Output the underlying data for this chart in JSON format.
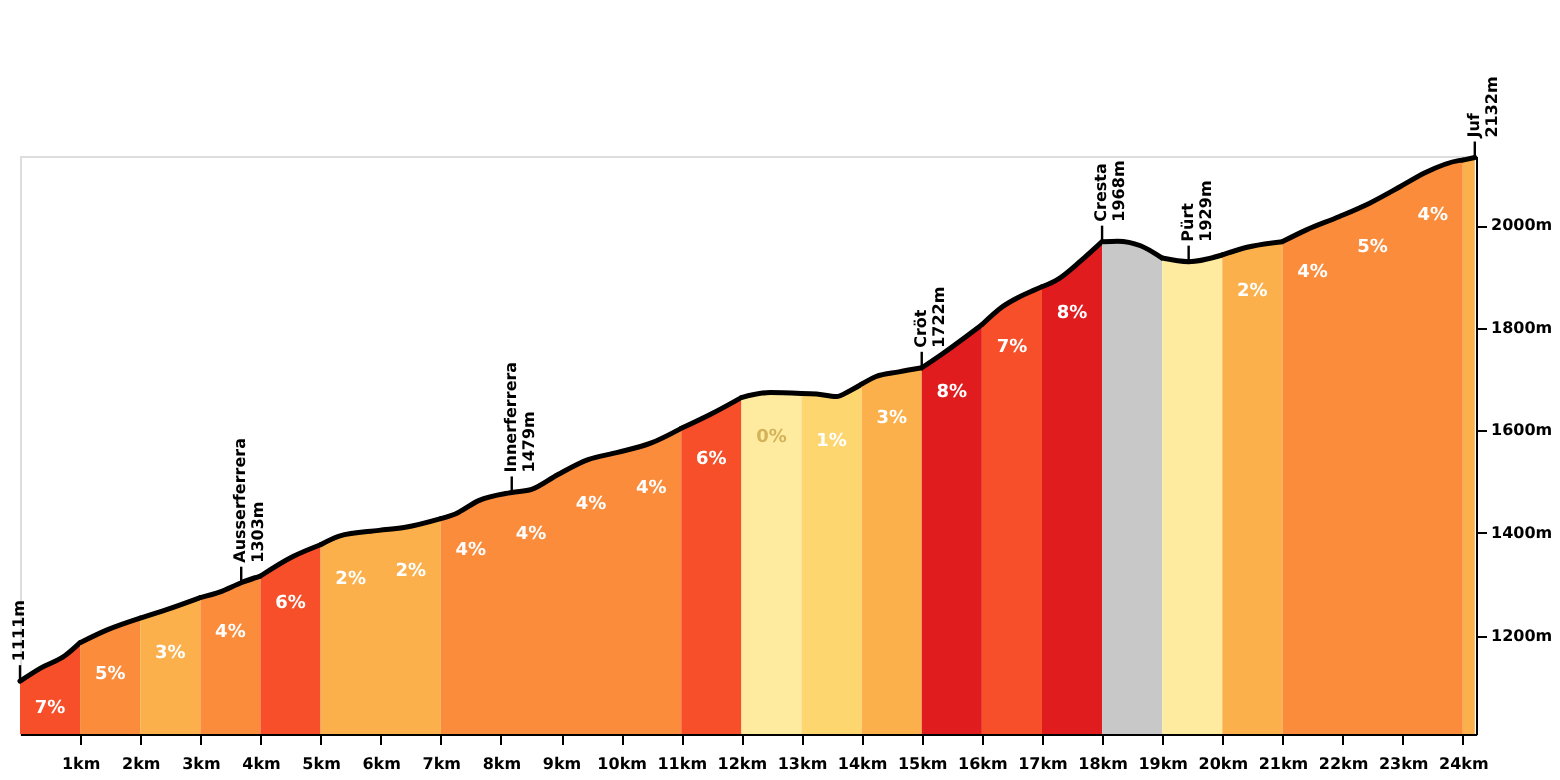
{
  "chart_data": {
    "type": "area",
    "xlim": [
      0,
      24.22
    ],
    "ylim": [
      1008,
      2135
    ],
    "xticks": [
      {
        "value": 1,
        "label": "1km"
      },
      {
        "value": 2,
        "label": "2km"
      },
      {
        "value": 3,
        "label": "3km"
      },
      {
        "value": 4,
        "label": "4km"
      },
      {
        "value": 5,
        "label": "5km"
      },
      {
        "value": 6,
        "label": "6km"
      },
      {
        "value": 7,
        "label": "7km"
      },
      {
        "value": 8,
        "label": "8km"
      },
      {
        "value": 9,
        "label": "9km"
      },
      {
        "value": 10,
        "label": "10km"
      },
      {
        "value": 11,
        "label": "11km"
      },
      {
        "value": 12,
        "label": "12km"
      },
      {
        "value": 13,
        "label": "13km"
      },
      {
        "value": 14,
        "label": "14km"
      },
      {
        "value": 15,
        "label": "15km"
      },
      {
        "value": 16,
        "label": "16km"
      },
      {
        "value": 17,
        "label": "17km"
      },
      {
        "value": 18,
        "label": "18km"
      },
      {
        "value": 19,
        "label": "19km"
      },
      {
        "value": 20,
        "label": "20km"
      },
      {
        "value": 21,
        "label": "21km"
      },
      {
        "value": 22,
        "label": "22km"
      },
      {
        "value": 23,
        "label": "23km"
      },
      {
        "value": 24,
        "label": "24km"
      }
    ],
    "yticks": [
      {
        "value": 1200,
        "label": "1200m"
      },
      {
        "value": 1400,
        "label": "1400m"
      },
      {
        "value": 1600,
        "label": "1600m"
      },
      {
        "value": 1800,
        "label": "1800m"
      },
      {
        "value": 2000,
        "label": "2000m"
      }
    ],
    "grid": false,
    "series": [
      {
        "color": "#f74f2a",
        "x": [
          0,
          0.35,
          0.74,
          1
        ],
        "values": [
          1111,
          1137,
          1160,
          1186
        ]
      },
      {
        "color": "#fa8c3c",
        "x": [
          1,
          1.45,
          2
        ],
        "values": [
          1186,
          1211,
          1234
        ]
      },
      {
        "color": "#fbb04c",
        "x": [
          2,
          2.45,
          3
        ],
        "values": [
          1234,
          1251,
          1274
        ]
      },
      {
        "color": "#fa8c3c",
        "x": [
          3,
          3.33,
          3.68,
          4
        ],
        "values": [
          1274,
          1285,
          1303,
          1316
        ]
      },
      {
        "color": "#f74f2a",
        "x": [
          4,
          4.54,
          5
        ],
        "values": [
          1316,
          1354,
          1377
        ]
      },
      {
        "color": "#fbb04c",
        "x": [
          5,
          5.31,
          5.97,
          6.41,
          7
        ],
        "values": [
          1377,
          1394,
          1405,
          1411,
          1428
        ]
      },
      {
        "color": "#fa8c3c",
        "x": [
          7,
          7.24,
          7.63,
          8.18,
          8.51,
          8.95,
          9.45,
          9.94,
          10.49,
          11
        ],
        "values": [
          1428,
          1437,
          1463,
          1479,
          1485,
          1514,
          1543,
          1557,
          1575,
          1604
        ]
      },
      {
        "color": "#f74f2a",
        "x": [
          11,
          11.48,
          12
        ],
        "values": [
          1604,
          1631,
          1664
        ]
      },
      {
        "color": "#feeba0",
        "x": [
          12,
          12.48,
          13
        ],
        "values": [
          1664,
          1674,
          1672
        ]
      },
      {
        "color": "#fdd670",
        "x": [
          13,
          13.25,
          13.58,
          13.8,
          14
        ],
        "values": [
          1672,
          1671,
          1666,
          1677,
          1690
        ]
      },
      {
        "color": "#fbb04c",
        "x": [
          14,
          14.24,
          14.62,
          15
        ],
        "values": [
          1690,
          1705,
          1714,
          1722
        ]
      },
      {
        "color": "#e11c1f",
        "x": [
          15,
          15.34,
          16
        ],
        "values": [
          1722,
          1749,
          1806
        ]
      },
      {
        "color": "#f74f2a",
        "x": [
          16,
          16.33,
          16.88,
          17
        ],
        "values": [
          1806,
          1840,
          1874,
          1880
        ]
      },
      {
        "color": "#e11c1f",
        "x": [
          17,
          17.27,
          17.65,
          18
        ],
        "values": [
          1880,
          1895,
          1931,
          1968
        ]
      },
      {
        "color": "#c8c8c8",
        "x": [
          18,
          18.26,
          18.64,
          19
        ],
        "values": [
          1968,
          1969,
          1960,
          1936
        ]
      },
      {
        "color": "#feeba0",
        "x": [
          19,
          19.44,
          20
        ],
        "values": [
          1936,
          1929,
          1942
        ]
      },
      {
        "color": "#fbb04c",
        "x": [
          20,
          20.41,
          21
        ],
        "values": [
          1942,
          1957,
          1968
        ]
      },
      {
        "color": "#fa8c3c",
        "x": [
          21,
          21.4,
          21.95,
          22.45,
          22.94,
          23.38,
          23.93,
          24
        ],
        "values": [
          1968,
          1991,
          2017,
          2043,
          2074,
          2103,
          2126,
          2127
        ]
      },
      {
        "color": "#fbb04c",
        "x": [
          24,
          24.2
        ],
        "values": [
          2127,
          2132
        ]
      }
    ],
    "annotations": [
      {
        "text": "1111m",
        "x": 0,
        "y": 1111
      },
      {
        "text": "Ausserferrera\n1303m",
        "x": 3.68,
        "y": 1303
      },
      {
        "text": "Innerferrera\n1479m",
        "x": 8.18,
        "y": 1479
      },
      {
        "text": "Cröt\n1722m",
        "x": 15,
        "y": 1722
      },
      {
        "text": "Cresta\n1968m",
        "x": 18,
        "y": 1968
      },
      {
        "text": "Pürt\n1929m",
        "x": 19.44,
        "y": 1929
      },
      {
        "text": "Juf\n2132m",
        "x": 24.2,
        "y": 2132
      },
      {
        "text": "7%",
        "x": 0.5,
        "y": 1146
      },
      {
        "text": "5%",
        "x": 1.5,
        "y": 1213
      },
      {
        "text": "3%",
        "x": 2.5,
        "y": 1253
      },
      {
        "text": "4%",
        "x": 3.5,
        "y": 1294
      },
      {
        "text": "6%",
        "x": 4.5,
        "y": 1351
      },
      {
        "text": "2%",
        "x": 5.5,
        "y": 1397
      },
      {
        "text": "2%",
        "x": 6.5,
        "y": 1414
      },
      {
        "text": "4%",
        "x": 7.5,
        "y": 1454
      },
      {
        "text": "4%",
        "x": 8.5,
        "y": 1485
      },
      {
        "text": "4%",
        "x": 9.5,
        "y": 1545
      },
      {
        "text": "4%",
        "x": 10.5,
        "y": 1575
      },
      {
        "text": "6%",
        "x": 11.5,
        "y": 1632
      },
      {
        "text": "0%",
        "x": 12.5,
        "y": 1674
      },
      {
        "text": "1%",
        "x": 13.5,
        "y": 1667
      },
      {
        "text": "3%",
        "x": 14.5,
        "y": 1711
      },
      {
        "text": "8%",
        "x": 15.5,
        "y": 1763
      },
      {
        "text": "7%",
        "x": 16.5,
        "y": 1851
      },
      {
        "text": "8%",
        "x": 17.5,
        "y": 1917
      },
      {
        "text": "2%",
        "x": 20.5,
        "y": 1959
      },
      {
        "text": "4%",
        "x": 21.5,
        "y": 1996
      },
      {
        "text": "5%",
        "x": 22.5,
        "y": 2046
      },
      {
        "text": "4%",
        "x": 23.5,
        "y": 2108
      }
    ]
  }
}
